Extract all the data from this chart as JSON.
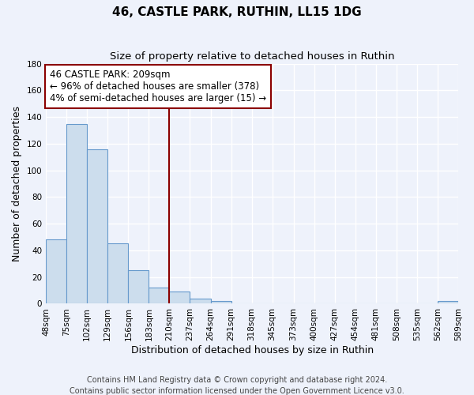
{
  "title": "46, CASTLE PARK, RUTHIN, LL15 1DG",
  "subtitle": "Size of property relative to detached houses in Ruthin",
  "xlabel": "Distribution of detached houses by size in Ruthin",
  "ylabel": "Number of detached properties",
  "footer_lines": [
    "Contains HM Land Registry data © Crown copyright and database right 2024.",
    "Contains public sector information licensed under the Open Government Licence v3.0."
  ],
  "bin_edges": [
    48,
    75,
    102,
    129,
    156,
    183,
    210,
    237,
    264,
    291,
    318,
    345,
    373,
    400,
    427,
    454,
    481,
    508,
    535,
    562,
    589
  ],
  "bar_heights": [
    48,
    135,
    116,
    45,
    25,
    12,
    9,
    4,
    2,
    0,
    0,
    0,
    0,
    0,
    0,
    0,
    0,
    0,
    0,
    2
  ],
  "bar_color": "#ccdded",
  "bar_edge_color": "#6699cc",
  "vline_x": 210,
  "vline_color": "#8b0000",
  "annotation_text": "46 CASTLE PARK: 209sqm\n← 96% of detached houses are smaller (378)\n4% of semi-detached houses are larger (15) →",
  "annotation_box_color": "#ffffff",
  "annotation_box_edge_color": "#8b0000",
  "ylim": [
    0,
    180
  ],
  "yticks": [
    0,
    20,
    40,
    60,
    80,
    100,
    120,
    140,
    160,
    180
  ],
  "xtick_labels": [
    "48sqm",
    "75sqm",
    "102sqm",
    "129sqm",
    "156sqm",
    "183sqm",
    "210sqm",
    "237sqm",
    "264sqm",
    "291sqm",
    "318sqm",
    "345sqm",
    "373sqm",
    "400sqm",
    "427sqm",
    "454sqm",
    "481sqm",
    "508sqm",
    "535sqm",
    "562sqm",
    "589sqm"
  ],
  "background_color": "#eef2fb",
  "grid_color": "#ffffff",
  "title_fontsize": 11,
  "subtitle_fontsize": 9.5,
  "axis_label_fontsize": 9,
  "tick_fontsize": 7.5,
  "annotation_fontsize": 8.5,
  "footer_fontsize": 7
}
